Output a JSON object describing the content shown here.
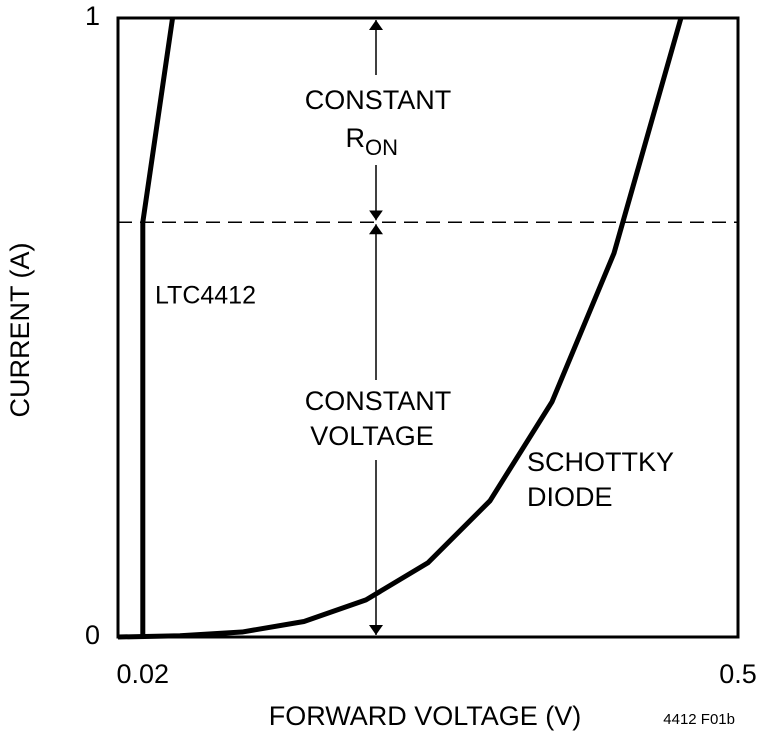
{
  "chart_data": {
    "type": "line",
    "x_label": "FORWARD VOLTAGE (V)",
    "y_label": "CURRENT (A)",
    "xlim": [
      0,
      0.5
    ],
    "xticks": [
      0.02,
      0.5
    ],
    "ylim": [
      0,
      1
    ],
    "yticks": [
      0,
      1
    ],
    "hline": 0.67,
    "series": [
      {
        "color": "#000000",
        "x": [
          0.02,
          0.02,
          0.044
        ],
        "values": [
          0,
          0.67,
          1
        ]
      },
      {
        "color": "#000000",
        "x": [
          0,
          0.05,
          0.1,
          0.15,
          0.2,
          0.25,
          0.3,
          0.35,
          0.4,
          0.454
        ],
        "values": [
          0,
          0.002,
          0.008,
          0.025,
          0.06,
          0.12,
          0.22,
          0.38,
          0.62,
          1
        ]
      }
    ],
    "annotations": [
      "CONSTANT",
      "R",
      "ON",
      "CONSTANT",
      "VOLTAGE",
      "LTC4412",
      "SCHOTTKY",
      "DIODE",
      "4412 F01b"
    ]
  }
}
